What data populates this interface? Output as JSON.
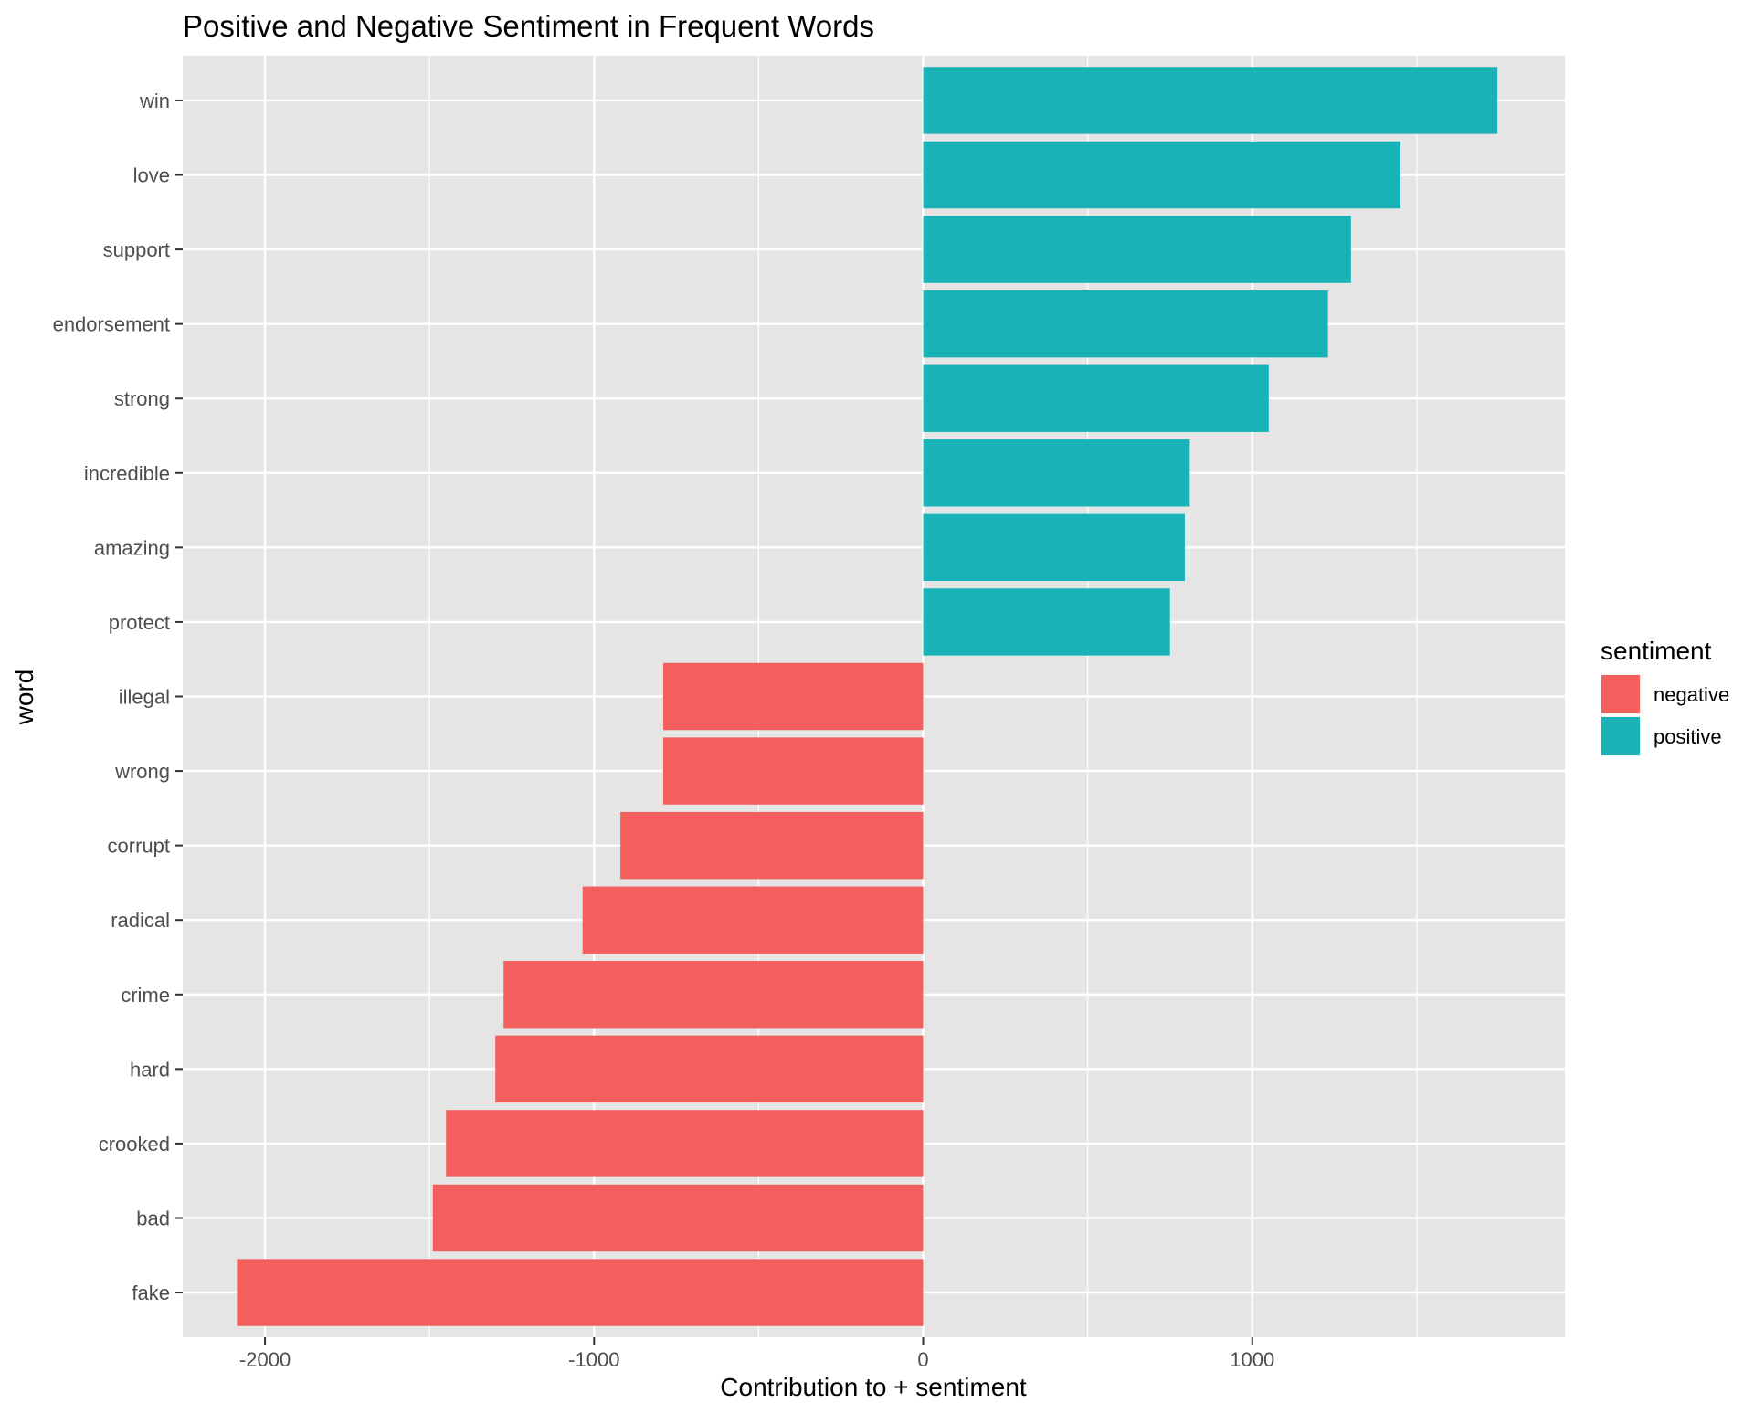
{
  "chart_data": {
    "type": "bar",
    "orientation": "horizontal",
    "title": "Positive and Negative Sentiment in Frequent Words",
    "xlabel": "Contribution to + sentiment",
    "ylabel": "word",
    "xlim": [
      -2250,
      1950
    ],
    "x_ticks": [
      -2000,
      -1000,
      0,
      1000
    ],
    "x_tick_labels": [
      "-2000",
      "-1000",
      "0",
      "1000"
    ],
    "grid": true,
    "legend": {
      "title": "sentiment",
      "placement": "right",
      "entries": [
        {
          "label": "negative",
          "color": "#F8766D"
        },
        {
          "label": "positive",
          "color": "#00BFC4"
        }
      ]
    },
    "categories": [
      "win",
      "love",
      "support",
      "endorsement",
      "strong",
      "incredible",
      "amazing",
      "protect",
      "illegal",
      "wrong",
      "corrupt",
      "radical",
      "crime",
      "hard",
      "crooked",
      "bad",
      "fake"
    ],
    "values": [
      1745,
      1450,
      1300,
      1230,
      1050,
      810,
      795,
      750,
      -790,
      -790,
      -920,
      -1035,
      -1275,
      -1300,
      -1450,
      -1490,
      -2085
    ],
    "sentiment": [
      "positive",
      "positive",
      "positive",
      "positive",
      "positive",
      "positive",
      "positive",
      "positive",
      "negative",
      "negative",
      "negative",
      "negative",
      "negative",
      "negative",
      "negative",
      "negative",
      "negative"
    ]
  },
  "colors": {
    "negative": "#F25F5C",
    "positive": "#19B3B7",
    "panel": "#E5E5E5",
    "grid": "#FFFFFF"
  }
}
